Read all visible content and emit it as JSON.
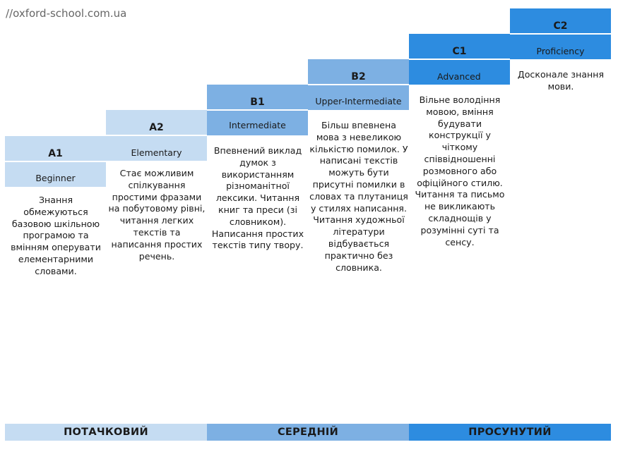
{
  "watermark": "//oxford-school.com.ua",
  "levels": [
    {
      "code": "A1",
      "name": "Beginner",
      "color": "#c5dcf2",
      "description": "Знання обмежуються базовою шкільною програмою та вмінням оперувати елементарними словами."
    },
    {
      "code": "A2",
      "name": "Elementary",
      "color": "#c5dcf2",
      "description": "Стає можливим спілкування простими фразами на побутовому рівні, читання легких текстів та написання простих речень."
    },
    {
      "code": "B1",
      "name": "Intermediate",
      "color": "#7db0e3",
      "description": "Впевнений виклад думок з використанням різноманітної лексики. Читання книг та преси (зі словником). Написання простих текстів типу твору."
    },
    {
      "code": "B2",
      "name": "Upper-Intermediate",
      "color": "#7db0e3",
      "description": "Більш впевнена мова з невеликою кількістю помилок. У написані текстів можуть бути присутні помилки в словах та плутаниця у стилях написання. Читання художньої літератури відбувається практично без словника."
    },
    {
      "code": "C1",
      "name": "Advanced",
      "color": "#2d8ce0",
      "description": "Вільне володіння мовою, вміння будувати конструкції у чіткому співвідношенні розмовного або офіційного стилю. Читання та письмо не викликають складнощів у розумінні суті та сенсу."
    },
    {
      "code": "C2",
      "name": "Proficiency",
      "color": "#2d8ce0",
      "description": "Досконале знання мови."
    }
  ],
  "bands": [
    {
      "label": "ПОТАЧКОВИЙ",
      "color": "#c5dcf2"
    },
    {
      "label": "СЕРЕДНІЙ",
      "color": "#7db0e3"
    },
    {
      "label": "ПРОСУНУТИЙ",
      "color": "#2d8ce0"
    }
  ]
}
